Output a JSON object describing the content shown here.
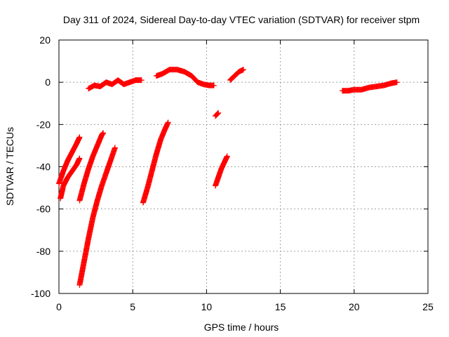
{
  "chart_data": {
    "type": "scatter",
    "title": "Day 311 of 2024, Sidereal Day-to-day VTEC variation (SDTVAR) for receiver stpm",
    "xlabel": "GPS time / hours",
    "ylabel": "SDTVAR / TECUs",
    "xlim": [
      0,
      25
    ],
    "ylim": [
      -100,
      20
    ],
    "xticks": [
      "0",
      "5",
      "10",
      "15",
      "20",
      "25"
    ],
    "yticks": [
      "20",
      "0",
      "-20",
      "-40",
      "-60",
      "-80",
      "-100"
    ],
    "grid": true,
    "marker": "+",
    "color": "#ff0000",
    "series": [
      {
        "points": [
          [
            0.0,
            -48
          ],
          [
            0.3,
            -42
          ],
          [
            0.6,
            -37
          ],
          [
            0.9,
            -33
          ],
          [
            1.2,
            -29
          ],
          [
            1.4,
            -26
          ]
        ]
      },
      {
        "points": [
          [
            0.1,
            -55
          ],
          [
            0.3,
            -49
          ],
          [
            0.6,
            -45
          ],
          [
            0.9,
            -42
          ],
          [
            1.2,
            -39
          ],
          [
            1.4,
            -36
          ]
        ]
      },
      {
        "points": [
          [
            1.4,
            -56
          ],
          [
            1.7,
            -48
          ],
          [
            2.0,
            -41
          ],
          [
            2.3,
            -35
          ],
          [
            2.6,
            -30
          ],
          [
            2.9,
            -25
          ],
          [
            3.0,
            -24
          ]
        ]
      },
      {
        "points": [
          [
            1.4,
            -96
          ],
          [
            1.7,
            -85
          ],
          [
            2.0,
            -74
          ],
          [
            2.3,
            -64
          ],
          [
            2.6,
            -56
          ],
          [
            2.9,
            -49
          ],
          [
            3.2,
            -43
          ],
          [
            3.5,
            -37
          ],
          [
            3.8,
            -31
          ]
        ]
      },
      {
        "points": [
          [
            2.0,
            -3
          ],
          [
            2.4,
            -1.5
          ],
          [
            2.8,
            -2
          ],
          [
            3.2,
            0
          ],
          [
            3.6,
            -1
          ],
          [
            4.0,
            1
          ],
          [
            4.4,
            -1
          ],
          [
            4.8,
            0
          ],
          [
            5.2,
            1
          ],
          [
            5.6,
            1
          ]
        ]
      },
      {
        "points": [
          [
            5.7,
            -57
          ],
          [
            6.0,
            -50
          ],
          [
            6.3,
            -42
          ],
          [
            6.6,
            -34
          ],
          [
            6.9,
            -27
          ],
          [
            7.2,
            -22
          ],
          [
            7.4,
            -19
          ]
        ]
      },
      {
        "points": [
          [
            6.6,
            3
          ],
          [
            7.0,
            4
          ],
          [
            7.5,
            6
          ],
          [
            8.0,
            6
          ],
          [
            8.5,
            5
          ],
          [
            9.0,
            3
          ],
          [
            9.4,
            0
          ],
          [
            9.8,
            -1
          ],
          [
            10.2,
            -1.5
          ],
          [
            10.5,
            -1.5
          ]
        ]
      },
      {
        "points": [
          [
            10.6,
            -16
          ],
          [
            10.8,
            -14.5
          ]
        ]
      },
      {
        "points": [
          [
            10.6,
            -49
          ],
          [
            10.8,
            -45
          ],
          [
            11.0,
            -41
          ],
          [
            11.2,
            -38
          ],
          [
            11.4,
            -35
          ]
        ]
      },
      {
        "points": [
          [
            11.6,
            1
          ],
          [
            11.9,
            3
          ],
          [
            12.2,
            5
          ],
          [
            12.5,
            6
          ]
        ]
      },
      {
        "points": [
          [
            19.2,
            -4
          ],
          [
            19.6,
            -4
          ],
          [
            20.0,
            -3.5
          ],
          [
            20.5,
            -3.5
          ],
          [
            21.0,
            -2.5
          ],
          [
            21.5,
            -2
          ],
          [
            22.0,
            -1.5
          ],
          [
            22.5,
            -0.5
          ],
          [
            22.9,
            0
          ]
        ]
      }
    ]
  }
}
